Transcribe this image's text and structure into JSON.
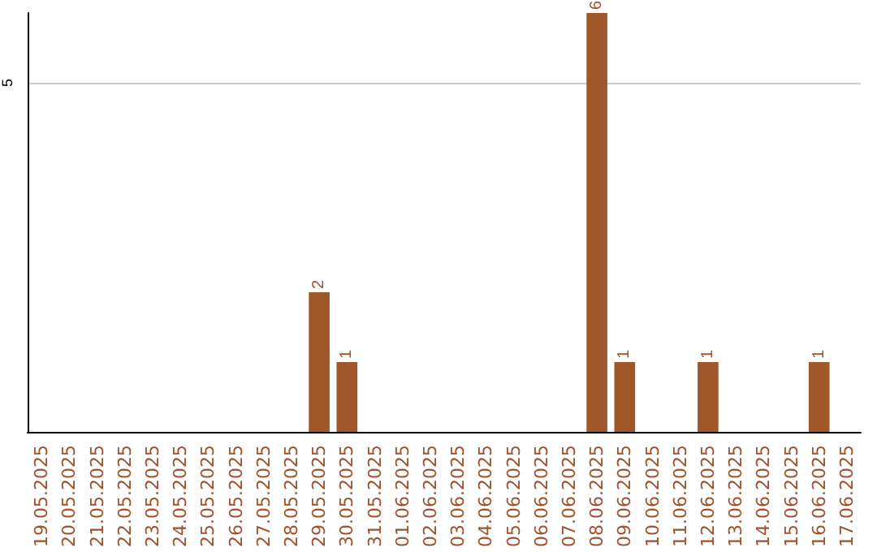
{
  "chart_data": {
    "type": "bar",
    "categories": [
      "19.05.2025",
      "20.05.2025",
      "21.05.2025",
      "22.05.2025",
      "23.05.2025",
      "24.05.2025",
      "25.05.2025",
      "26.05.2025",
      "27.05.2025",
      "28.05.2025",
      "29.05.2025",
      "30.05.2025",
      "31.05.2025",
      "01.06.2025",
      "02.06.2025",
      "03.06.2025",
      "04.06.2025",
      "05.06.2025",
      "06.06.2025",
      "07.06.2025",
      "08.06.2025",
      "09.06.2025",
      "10.06.2025",
      "11.06.2025",
      "12.06.2025",
      "13.06.2025",
      "14.06.2025",
      "15.06.2025",
      "16.06.2025",
      "17.06.2025"
    ],
    "values": [
      null,
      null,
      null,
      null,
      null,
      null,
      null,
      null,
      null,
      null,
      2,
      1,
      null,
      null,
      null,
      null,
      null,
      null,
      null,
      null,
      6,
      1,
      null,
      null,
      1,
      null,
      null,
      null,
      1,
      null
    ],
    "color": "#a0582a",
    "ylim": [
      0,
      6
    ],
    "yticks": [
      5
    ],
    "grid": "y",
    "data_labels": true
  }
}
